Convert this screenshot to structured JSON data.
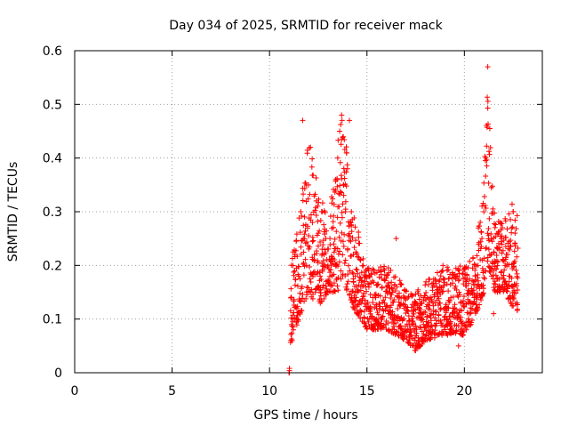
{
  "chart_data": {
    "type": "scatter",
    "title": "Day 034 of 2025, SRMTID for receiver mack",
    "xlabel": "GPS time / hours",
    "ylabel": "SRMTID / TECUs",
    "xlim": [
      0,
      24
    ],
    "ylim": [
      0,
      0.6
    ],
    "xticks": [
      0,
      5,
      10,
      15,
      20
    ],
    "yticks": [
      0,
      0.1,
      0.2,
      0.3,
      0.4,
      0.5,
      0.6
    ],
    "xtick_labels": [
      "0",
      "5",
      "10",
      "15",
      "20"
    ],
    "ytick_labels": [
      "0",
      "0.1",
      "0.2",
      "0.3",
      "0.4",
      "0.5",
      "0.6"
    ],
    "grid": true,
    "marker": "+",
    "color": "#ff0000",
    "series": [
      {
        "name": "SRMTID",
        "data_start_hour": 11.0,
        "data_end_hour": 22.75,
        "envelope": [
          {
            "x": 11.0,
            "low": 0.0,
            "high": 0.0
          },
          {
            "x": 11.1,
            "low": 0.05,
            "high": 0.2
          },
          {
            "x": 11.5,
            "low": 0.1,
            "high": 0.3
          },
          {
            "x": 12.0,
            "low": 0.15,
            "high": 0.43
          },
          {
            "x": 12.5,
            "low": 0.12,
            "high": 0.35
          },
          {
            "x": 13.0,
            "low": 0.15,
            "high": 0.28
          },
          {
            "x": 13.5,
            "low": 0.15,
            "high": 0.43
          },
          {
            "x": 13.7,
            "low": 0.18,
            "high": 0.48
          },
          {
            "x": 14.0,
            "low": 0.15,
            "high": 0.45
          },
          {
            "x": 14.3,
            "low": 0.12,
            "high": 0.3
          },
          {
            "x": 15.0,
            "low": 0.08,
            "high": 0.2
          },
          {
            "x": 16.0,
            "low": 0.08,
            "high": 0.2
          },
          {
            "x": 17.0,
            "low": 0.06,
            "high": 0.16
          },
          {
            "x": 17.5,
            "low": 0.04,
            "high": 0.15
          },
          {
            "x": 18.0,
            "low": 0.06,
            "high": 0.17
          },
          {
            "x": 19.0,
            "low": 0.07,
            "high": 0.2
          },
          {
            "x": 20.0,
            "low": 0.07,
            "high": 0.2
          },
          {
            "x": 20.5,
            "low": 0.1,
            "high": 0.22
          },
          {
            "x": 21.0,
            "low": 0.15,
            "high": 0.35
          },
          {
            "x": 21.2,
            "low": 0.18,
            "high": 0.57
          },
          {
            "x": 21.5,
            "low": 0.15,
            "high": 0.3
          },
          {
            "x": 22.0,
            "low": 0.15,
            "high": 0.28
          },
          {
            "x": 22.5,
            "low": 0.12,
            "high": 0.32
          },
          {
            "x": 22.75,
            "low": 0.1,
            "high": 0.3
          }
        ],
        "points": [
          [
            11.0,
            0.0
          ],
          [
            11.1,
            0.06
          ],
          [
            11.2,
            0.1
          ],
          [
            11.3,
            0.22
          ],
          [
            11.4,
            0.12
          ],
          [
            11.5,
            0.18
          ],
          [
            11.6,
            0.3
          ],
          [
            11.7,
            0.47
          ],
          [
            11.8,
            0.25
          ],
          [
            11.9,
            0.2
          ],
          [
            12.0,
            0.35
          ],
          [
            12.1,
            0.42
          ],
          [
            12.2,
            0.28
          ],
          [
            12.3,
            0.22
          ],
          [
            12.4,
            0.32
          ],
          [
            12.5,
            0.26
          ],
          [
            12.6,
            0.18
          ],
          [
            12.7,
            0.3
          ],
          [
            12.8,
            0.22
          ],
          [
            12.9,
            0.17
          ],
          [
            13.0,
            0.2
          ],
          [
            13.1,
            0.25
          ],
          [
            13.2,
            0.18
          ],
          [
            13.3,
            0.24
          ],
          [
            13.4,
            0.34
          ],
          [
            13.5,
            0.4
          ],
          [
            13.6,
            0.45
          ],
          [
            13.7,
            0.48
          ],
          [
            13.8,
            0.35
          ],
          [
            13.9,
            0.3
          ],
          [
            14.0,
            0.38
          ],
          [
            14.1,
            0.47
          ],
          [
            14.2,
            0.3
          ],
          [
            14.3,
            0.22
          ],
          [
            14.4,
            0.18
          ],
          [
            14.5,
            0.15
          ],
          [
            14.7,
            0.13
          ],
          [
            14.9,
            0.17
          ],
          [
            15.1,
            0.12
          ],
          [
            15.3,
            0.14
          ],
          [
            15.5,
            0.1
          ],
          [
            15.7,
            0.19
          ],
          [
            15.9,
            0.13
          ],
          [
            16.1,
            0.11
          ],
          [
            16.3,
            0.15
          ],
          [
            16.5,
            0.25
          ],
          [
            16.7,
            0.1
          ],
          [
            16.9,
            0.12
          ],
          [
            17.1,
            0.08
          ],
          [
            17.3,
            0.1
          ],
          [
            17.5,
            0.05
          ],
          [
            17.7,
            0.12
          ],
          [
            17.9,
            0.09
          ],
          [
            18.1,
            0.14
          ],
          [
            18.3,
            0.11
          ],
          [
            18.5,
            0.13
          ],
          [
            18.7,
            0.17
          ],
          [
            18.9,
            0.2
          ],
          [
            19.1,
            0.1
          ],
          [
            19.3,
            0.08
          ],
          [
            19.5,
            0.12
          ],
          [
            19.7,
            0.05
          ],
          [
            19.9,
            0.13
          ],
          [
            20.1,
            0.17
          ],
          [
            20.3,
            0.11
          ],
          [
            20.5,
            0.14
          ],
          [
            20.7,
            0.2
          ],
          [
            20.9,
            0.25
          ],
          [
            21.0,
            0.3
          ],
          [
            21.1,
            0.4
          ],
          [
            21.2,
            0.57
          ],
          [
            21.3,
            0.22
          ],
          [
            21.4,
            0.18
          ],
          [
            21.5,
            0.11
          ],
          [
            21.7,
            0.15
          ],
          [
            21.9,
            0.25
          ],
          [
            22.1,
            0.2
          ],
          [
            22.3,
            0.18
          ],
          [
            22.5,
            0.3
          ],
          [
            22.6,
            0.26
          ],
          [
            22.7,
            0.13
          ]
        ]
      }
    ]
  }
}
